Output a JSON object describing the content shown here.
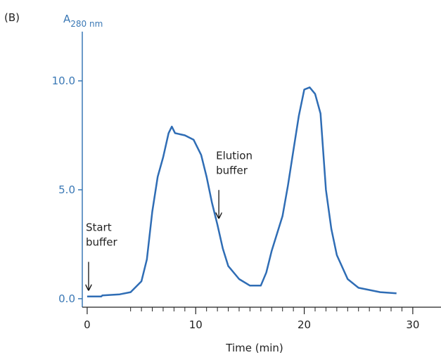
{
  "chart_data": {
    "type": "line",
    "panel_label": "(B)",
    "y_label": {
      "main": "A",
      "sub": "280 nm"
    },
    "x_label": "Time (min)",
    "x": [
      0,
      1.3,
      1.4,
      3,
      4,
      5,
      5.5,
      6,
      6.5,
      7,
      7.5,
      7.8,
      8.1,
      9,
      9.8,
      10.5,
      11,
      11.5,
      12,
      12.5,
      13,
      14,
      15,
      16,
      16.5,
      17,
      18,
      18.5,
      19,
      19.5,
      20,
      20.5,
      21,
      21.5,
      22,
      22.5,
      23,
      24,
      25,
      26,
      27,
      28.5
    ],
    "series": [
      {
        "name": "A280",
        "color": "#2f6db5",
        "values": [
          0.1,
          0.1,
          0.15,
          0.2,
          0.3,
          0.8,
          1.8,
          4.0,
          5.6,
          6.5,
          7.6,
          7.9,
          7.6,
          7.5,
          7.3,
          6.6,
          5.6,
          4.4,
          3.4,
          2.3,
          1.5,
          0.9,
          0.6,
          0.6,
          1.2,
          2.2,
          3.8,
          5.2,
          6.8,
          8.4,
          9.6,
          9.7,
          9.4,
          8.5,
          5.0,
          3.2,
          2.0,
          0.9,
          0.5,
          0.4,
          0.3,
          0.25
        ]
      }
    ],
    "xlim": [
      -0.45,
      32.6
    ],
    "ylim": [
      -0.39,
      12.26
    ],
    "xticks": [
      0,
      10,
      20,
      30
    ],
    "xminorticks": [
      4,
      5,
      6,
      7,
      8,
      9,
      11,
      12,
      13,
      14,
      15,
      16,
      17,
      18,
      19,
      21,
      22,
      23,
      24,
      25,
      26,
      27,
      28,
      29
    ],
    "yticks": [
      {
        "value": 0,
        "label": "0.0"
      },
      {
        "value": 5,
        "label": "5.0"
      },
      {
        "value": 10,
        "label": "10.0"
      }
    ],
    "annotations": [
      {
        "lines": [
          "Start",
          "buffer"
        ],
        "x": 0,
        "y": 0.4
      },
      {
        "lines": [
          "Elution",
          "buffer"
        ],
        "x": 12,
        "y": 3.7
      }
    ]
  }
}
